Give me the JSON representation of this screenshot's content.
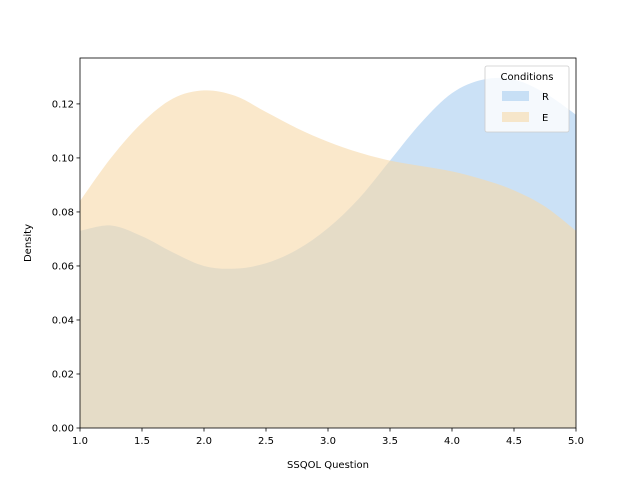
{
  "chart_data": {
    "type": "area",
    "xlabel": "SSQOL Question",
    "ylabel": "Density",
    "xlim": [
      1.0,
      5.0
    ],
    "ylim": [
      0.0,
      0.137
    ],
    "xticks": [
      "1.0",
      "1.5",
      "2.0",
      "2.5",
      "3.0",
      "3.5",
      "4.0",
      "4.5",
      "5.0"
    ],
    "yticks": [
      "0.00",
      "0.02",
      "0.04",
      "0.06",
      "0.08",
      "0.10",
      "0.12"
    ],
    "legend": {
      "title": "Conditions",
      "placement": "top-right"
    },
    "grid": false,
    "series": [
      {
        "name": "R",
        "color": "#a8cdf0",
        "x": [
          1.0,
          1.25,
          1.5,
          1.75,
          2.0,
          2.25,
          2.5,
          2.75,
          3.0,
          3.25,
          3.5,
          3.75,
          4.0,
          4.25,
          4.5,
          4.75,
          5.0
        ],
        "values": [
          0.073,
          0.075,
          0.071,
          0.065,
          0.06,
          0.059,
          0.061,
          0.066,
          0.074,
          0.085,
          0.099,
          0.113,
          0.124,
          0.129,
          0.129,
          0.124,
          0.116
        ]
      },
      {
        "name": "E",
        "color": "#f7d9a8",
        "x": [
          1.0,
          1.25,
          1.5,
          1.75,
          2.0,
          2.25,
          2.5,
          2.75,
          3.0,
          3.25,
          3.5,
          3.75,
          4.0,
          4.25,
          4.5,
          4.75,
          5.0
        ],
        "values": [
          0.084,
          0.1,
          0.113,
          0.122,
          0.125,
          0.123,
          0.117,
          0.111,
          0.106,
          0.102,
          0.099,
          0.097,
          0.095,
          0.092,
          0.088,
          0.082,
          0.073
        ]
      }
    ]
  }
}
